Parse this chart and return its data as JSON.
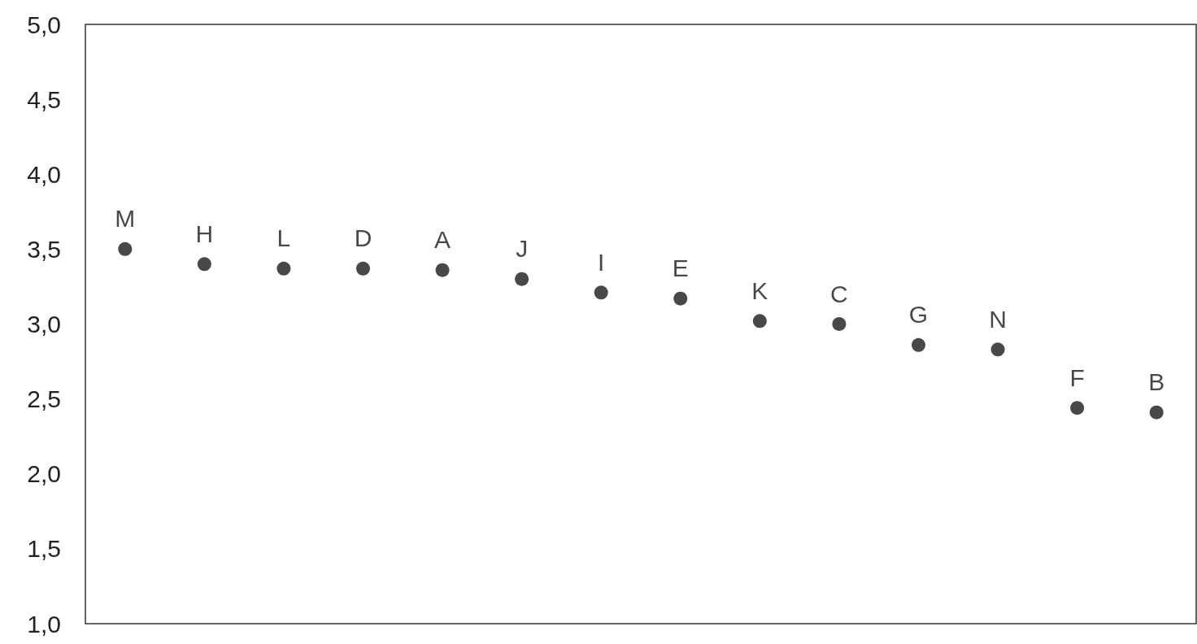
{
  "chart_data": {
    "type": "scatter",
    "categories": [
      "M",
      "H",
      "L",
      "D",
      "A",
      "J",
      "I",
      "E",
      "K",
      "C",
      "G",
      "N",
      "F",
      "B"
    ],
    "values": [
      3.5,
      3.4,
      3.37,
      3.37,
      3.36,
      3.3,
      3.21,
      3.17,
      3.02,
      3.0,
      2.86,
      2.83,
      2.44,
      2.41
    ],
    "color": "#1a1a1a",
    "marker": "circle",
    "grid": false,
    "tick_labels": "y",
    "ylim": [
      1,
      5
    ],
    "yticks": [
      {
        "value": 1,
        "label": "1,0"
      },
      {
        "value": 1.5,
        "label": "1,5"
      },
      {
        "value": 2,
        "label": "2,0"
      },
      {
        "value": 2.5,
        "label": "2,5"
      },
      {
        "value": 3,
        "label": "3,0"
      },
      {
        "value": 3.5,
        "label": "3,5"
      },
      {
        "value": 4,
        "label": "4,0"
      },
      {
        "value": 4.5,
        "label": "4,5"
      },
      {
        "value": 5,
        "label": "5,0"
      }
    ]
  }
}
